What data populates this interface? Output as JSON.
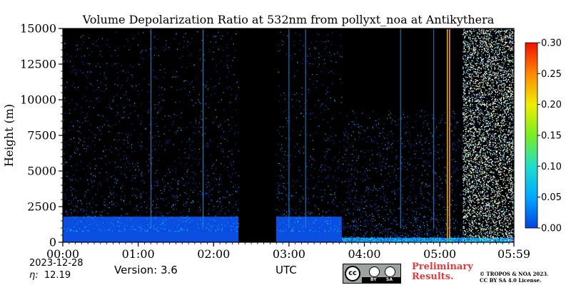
{
  "chart_data": {
    "type": "heatmap",
    "title": "Volume Depolarization Ratio at 532nm from pollyxt_noa at Antikythera",
    "xlabel": "UTC",
    "ylabel": "Height (m)",
    "x_ticks": [
      "00:00",
      "01:00",
      "02:00",
      "03:00",
      "04:00",
      "05:00",
      "05:59"
    ],
    "x_range_hours": [
      0,
      5.983
    ],
    "y_ticks": [
      0,
      2500,
      5000,
      7500,
      10000,
      12500,
      15000
    ],
    "y_range_m": [
      0,
      15000
    ],
    "colorbar": {
      "ticks": [
        "0.00",
        "0.05",
        "0.10",
        "0.15",
        "0.20",
        "0.25",
        "0.30"
      ],
      "range": [
        0,
        0.3
      ],
      "colormap": [
        "#0044dd",
        "#00a8ff",
        "#22ddcc",
        "#77ee22",
        "#eeee00",
        "#ff8800",
        "#ee1100"
      ]
    },
    "no_data_gaps_hours": [
      [
        2.33,
        2.83
      ]
    ],
    "low_layer_top_m": 1800,
    "depolarization_layer_m": [
      0,
      400
    ],
    "noisy_region_start_hours": 5.3,
    "background_color": "#000000"
  },
  "footer": {
    "date": "2023-12-28",
    "eta_symbol": "η:",
    "eta_value": "12.19",
    "version": "Version: 3.6",
    "utc": "UTC",
    "license_logo": {
      "cc": "cc",
      "by": "BY",
      "sa": "SA"
    },
    "preliminary_line1": "Preliminary",
    "preliminary_line2": "Results.",
    "copyright_line1": "© TROPOS & NOA 2023.",
    "copyright_line2": "CC BY SA 4.0 License."
  }
}
